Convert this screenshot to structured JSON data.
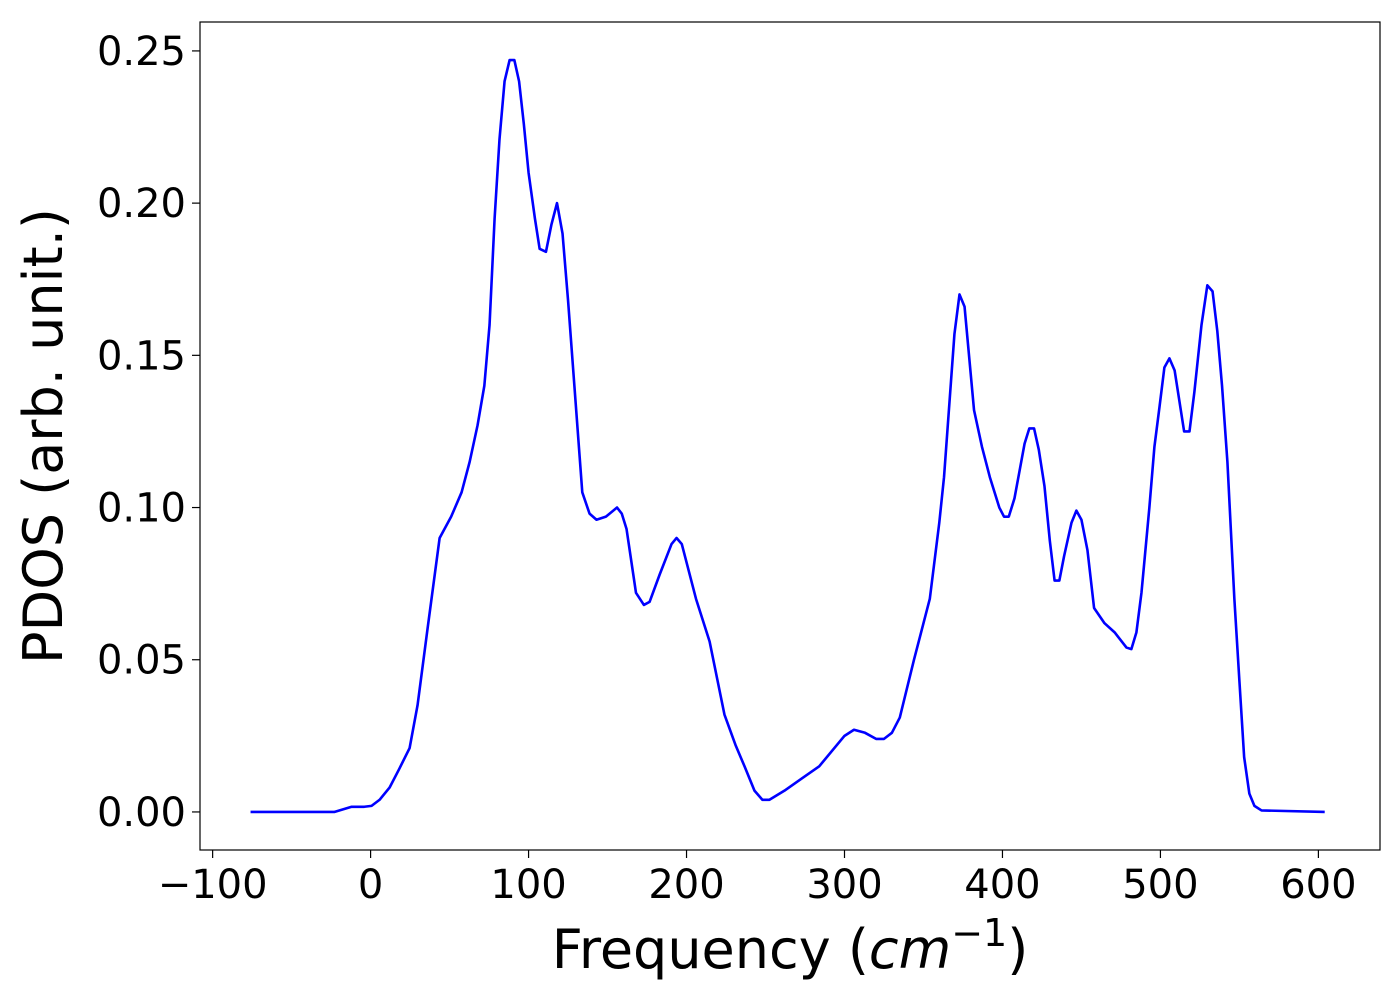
{
  "chart_data": {
    "type": "line",
    "xlabel": [
      "Frequency (",
      "cm",
      "−1",
      ")"
    ],
    "ylabel": "PDOS (arb. unit.)",
    "color": "#0000ff",
    "x": [
      -76,
      -23,
      -12,
      -4,
      0.6,
      5.7,
      12,
      18,
      24.7,
      29.7,
      36,
      43.7,
      51,
      57.6,
      62.7,
      67.7,
      72,
      75.3,
      78.5,
      81.6,
      84.8,
      88,
      91,
      94,
      97,
      100,
      104,
      107,
      111,
      114.5,
      118,
      121.5,
      125,
      129,
      134,
      138.6,
      143,
      149,
      156,
      159,
      162,
      168,
      173,
      176.6,
      183,
      190.5,
      193.7,
      197,
      206,
      214.6,
      224,
      231,
      236.7,
      243,
      248,
      252.5,
      262,
      273,
      284,
      300,
      306,
      313,
      320,
      325,
      330,
      335,
      344,
      354,
      360,
      363,
      369.6,
      372.8,
      376,
      382,
      387,
      392,
      398,
      401,
      404,
      407.6,
      414,
      417,
      420,
      423,
      426.6,
      430,
      433,
      436,
      439,
      443.7,
      446.8,
      450,
      453.8,
      458,
      464.6,
      471,
      478.5,
      481.6,
      484.8,
      488,
      493,
      496.2,
      499.4,
      502.5,
      505.7,
      509,
      515,
      518.4,
      521.5,
      526,
      529.7,
      533,
      536,
      539,
      542.4,
      546.8,
      550,
      553,
      556.3,
      559.5,
      564,
      604
    ],
    "values": [
      0,
      0,
      0.0017,
      0.0017,
      0.002,
      0.004,
      0.008,
      0.014,
      0.021,
      0.035,
      0.06,
      0.09,
      0.097,
      0.105,
      0.115,
      0.127,
      0.14,
      0.16,
      0.195,
      0.221,
      0.24,
      0.247,
      0.247,
      0.24,
      0.226,
      0.21,
      0.195,
      0.185,
      0.184,
      0.193,
      0.2,
      0.19,
      0.168,
      0.14,
      0.105,
      0.098,
      0.096,
      0.097,
      0.1,
      0.098,
      0.093,
      0.072,
      0.068,
      0.069,
      0.078,
      0.088,
      0.09,
      0.088,
      0.07,
      0.056,
      0.032,
      0.022,
      0.015,
      0.007,
      0.004,
      0.004,
      0.007,
      0.011,
      0.015,
      0.025,
      0.027,
      0.026,
      0.024,
      0.024,
      0.026,
      0.031,
      0.05,
      0.07,
      0.095,
      0.11,
      0.157,
      0.17,
      0.166,
      0.132,
      0.12,
      0.11,
      0.1,
      0.097,
      0.097,
      0.103,
      0.121,
      0.126,
      0.126,
      0.119,
      0.107,
      0.089,
      0.076,
      0.076,
      0.084,
      0.095,
      0.099,
      0.096,
      0.086,
      0.067,
      0.062,
      0.059,
      0.054,
      0.0535,
      0.059,
      0.072,
      0.1,
      0.12,
      0.133,
      0.146,
      0.149,
      0.145,
      0.125,
      0.125,
      0.138,
      0.16,
      0.173,
      0.171,
      0.158,
      0.14,
      0.115,
      0.07,
      0.043,
      0.018,
      0.006,
      0.002,
      0.0005,
      0
    ],
    "xlim": [
      -108,
      639
    ],
    "ylim": [
      -0.0125,
      0.2595
    ],
    "xticks": [
      {
        "value": -100,
        "label": "−100"
      },
      0,
      100,
      200,
      300,
      400,
      500,
      600
    ],
    "yticks": [
      {
        "value": 0,
        "label": "0.00"
      },
      {
        "value": 0.05,
        "label": "0.05"
      },
      {
        "value": 0.1,
        "label": "0.10"
      },
      {
        "value": 0.15,
        "label": "0.15"
      },
      {
        "value": 0.2,
        "label": "0.20"
      },
      {
        "value": 0.25,
        "label": "0.25"
      }
    ]
  }
}
